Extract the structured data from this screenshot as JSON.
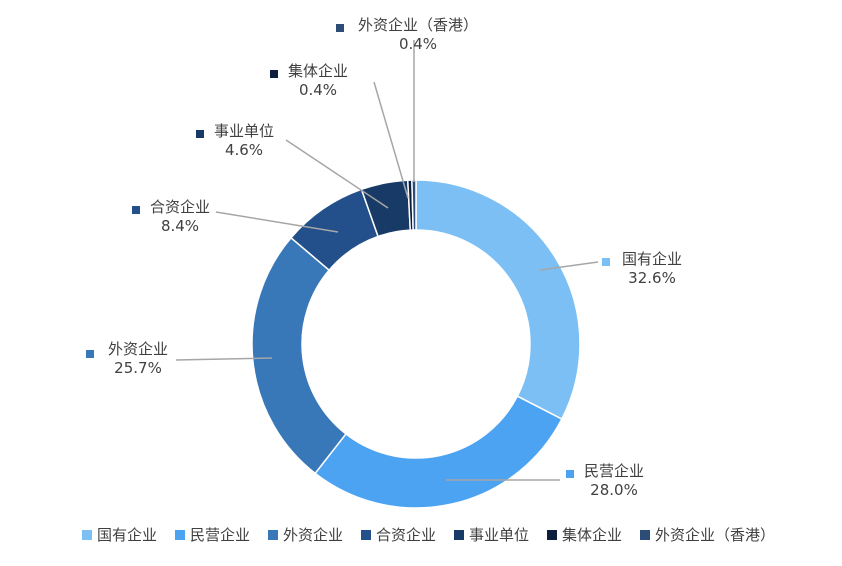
{
  "chart_data": {
    "type": "pie",
    "donut": true,
    "title": "",
    "legend_position": "bottom",
    "series": [
      {
        "name": "国有企业",
        "value": 32.6,
        "label": "32.6%",
        "color": "#7bbff5"
      },
      {
        "name": "民营企业",
        "value": 28.0,
        "label": "28.0%",
        "color": "#4ca3f2"
      },
      {
        "name": "外资企业",
        "value": 25.7,
        "label": "25.7%",
        "color": "#3877b8"
      },
      {
        "name": "合资企业",
        "value": 8.4,
        "label": "8.4%",
        "color": "#23508a"
      },
      {
        "name": "事业单位",
        "value": 4.6,
        "label": "4.6%",
        "color": "#173a66"
      },
      {
        "name": "集体企业",
        "value": 0.4,
        "label": "0.4%",
        "color": "#0b1f3d"
      },
      {
        "name": "外资企业（香港）",
        "value": 0.4,
        "label": "0.4%",
        "color": "#2b4d78"
      }
    ]
  }
}
